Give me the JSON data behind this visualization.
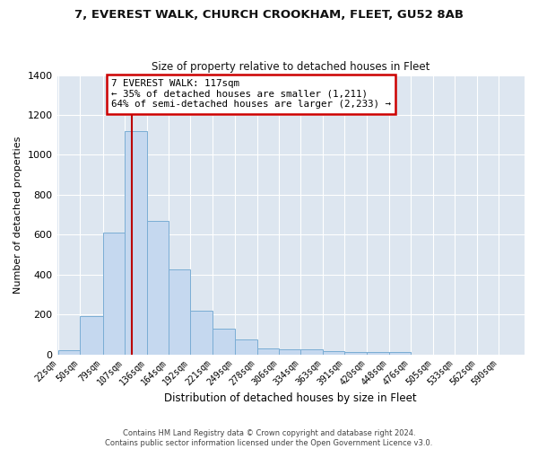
{
  "title1": "7, EVEREST WALK, CHURCH CROOKHAM, FLEET, GU52 8AB",
  "title2": "Size of property relative to detached houses in Fleet",
  "xlabel": "Distribution of detached houses by size in Fleet",
  "ylabel": "Number of detached properties",
  "bar_labels": [
    "22sqm",
    "50sqm",
    "79sqm",
    "107sqm",
    "136sqm",
    "164sqm",
    "192sqm",
    "221sqm",
    "249sqm",
    "278sqm",
    "306sqm",
    "334sqm",
    "363sqm",
    "391sqm",
    "420sqm",
    "448sqm",
    "476sqm",
    "505sqm",
    "533sqm",
    "562sqm",
    "590sqm"
  ],
  "bar_values": [
    20,
    190,
    610,
    1120,
    670,
    425,
    220,
    130,
    75,
    30,
    25,
    25,
    15,
    10,
    10,
    10,
    0,
    0,
    0,
    0,
    0
  ],
  "bar_color": "#c5d8ef",
  "bar_edge_color": "#7aadd4",
  "property_value": 117,
  "red_line_color": "#bb0000",
  "annotation_text": "7 EVEREST WALK: 117sqm\n← 35% of detached houses are smaller (1,211)\n64% of semi-detached houses are larger (2,233) →",
  "annotation_box_color": "#ffffff",
  "annotation_box_edge": "#cc0000",
  "footer1": "Contains HM Land Registry data © Crown copyright and database right 2024.",
  "footer2": "Contains public sector information licensed under the Open Government Licence v3.0.",
  "ylim": [
    0,
    1400
  ],
  "fig_bg_color": "#ffffff",
  "plot_bg_color": "#dde6f0",
  "grid_color": "#ffffff",
  "bin_edges": [
    22,
    50,
    79,
    107,
    136,
    164,
    192,
    221,
    249,
    278,
    306,
    334,
    363,
    391,
    420,
    448,
    476,
    505,
    533,
    562,
    590,
    618
  ]
}
